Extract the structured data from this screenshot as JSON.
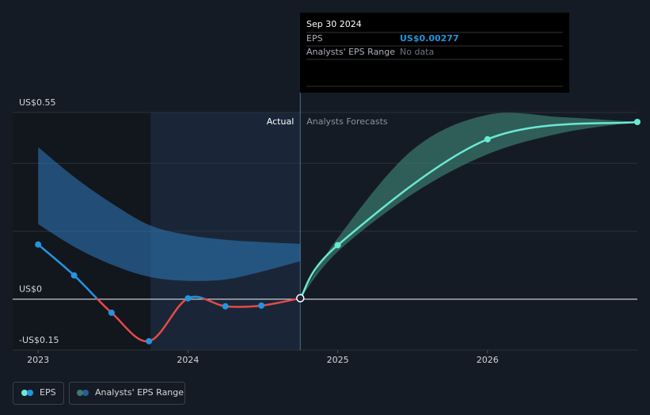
{
  "chart_data": {
    "type": "line",
    "xlim": [
      2022.83,
      2027.0
    ],
    "xticks": [
      2023,
      2024,
      2025,
      2026
    ],
    "ylim": [
      -0.15,
      0.55
    ],
    "yticks": [
      {
        "value": 0.55,
        "label": "US$0.55"
      },
      {
        "value": 0,
        "label": "US$0"
      },
      {
        "value": -0.15,
        "label": "-US$0.15"
      }
    ],
    "grid_values": [
      0.2,
      0.4
    ],
    "grid": true,
    "highlight_range": [
      2023.75,
      2024.75
    ],
    "divider_x": 2024.75,
    "actual_label": "Actual",
    "forecast_label": "Analysts Forecasts",
    "eps": {
      "name": "EPS",
      "color": "#2394df",
      "negative_color": "#e64a4a",
      "forecast_color": "#6ae9d3",
      "x": [
        2023.0,
        2023.24,
        2023.49,
        2023.74,
        2024.0,
        2024.25,
        2024.49,
        2024.75
      ],
      "values": [
        0.161,
        0.07,
        -0.04,
        -0.124,
        0.0023,
        -0.021,
        -0.019,
        0.00277
      ],
      "forecast_x": [
        2024.75,
        2025.0,
        2026.0,
        2027.0
      ],
      "forecast_values": [
        0.00277,
        0.159,
        0.471,
        0.522
      ]
    },
    "range": {
      "name": "Analysts' EPS Range",
      "color": "#2d7bbf",
      "forecast_color": "#3b7a6f",
      "x": [
        2023.0,
        2023.25,
        2023.5,
        2023.75,
        2024.0,
        2024.25,
        2024.5,
        2024.75
      ],
      "high": [
        0.448,
        0.357,
        0.28,
        0.217,
        0.189,
        0.175,
        0.168,
        0.163
      ],
      "low": [
        0.221,
        0.152,
        0.1,
        0.065,
        0.054,
        0.058,
        0.082,
        0.112
      ],
      "forecast_x": [
        2024.75,
        2025.0,
        2025.5,
        2026.0,
        2026.5,
        2027.0
      ],
      "forecast_high": [
        0.00277,
        0.18,
        0.44,
        0.543,
        0.536,
        0.522
      ],
      "forecast_low": [
        0.00277,
        0.14,
        0.31,
        0.427,
        0.49,
        0.522
      ]
    },
    "tooltip": {
      "date": "Sep 30 2024",
      "rows": [
        {
          "label": "EPS",
          "value": "US$0.00277"
        },
        {
          "label": "Analysts' EPS Range",
          "value": "No data"
        }
      ]
    }
  }
}
